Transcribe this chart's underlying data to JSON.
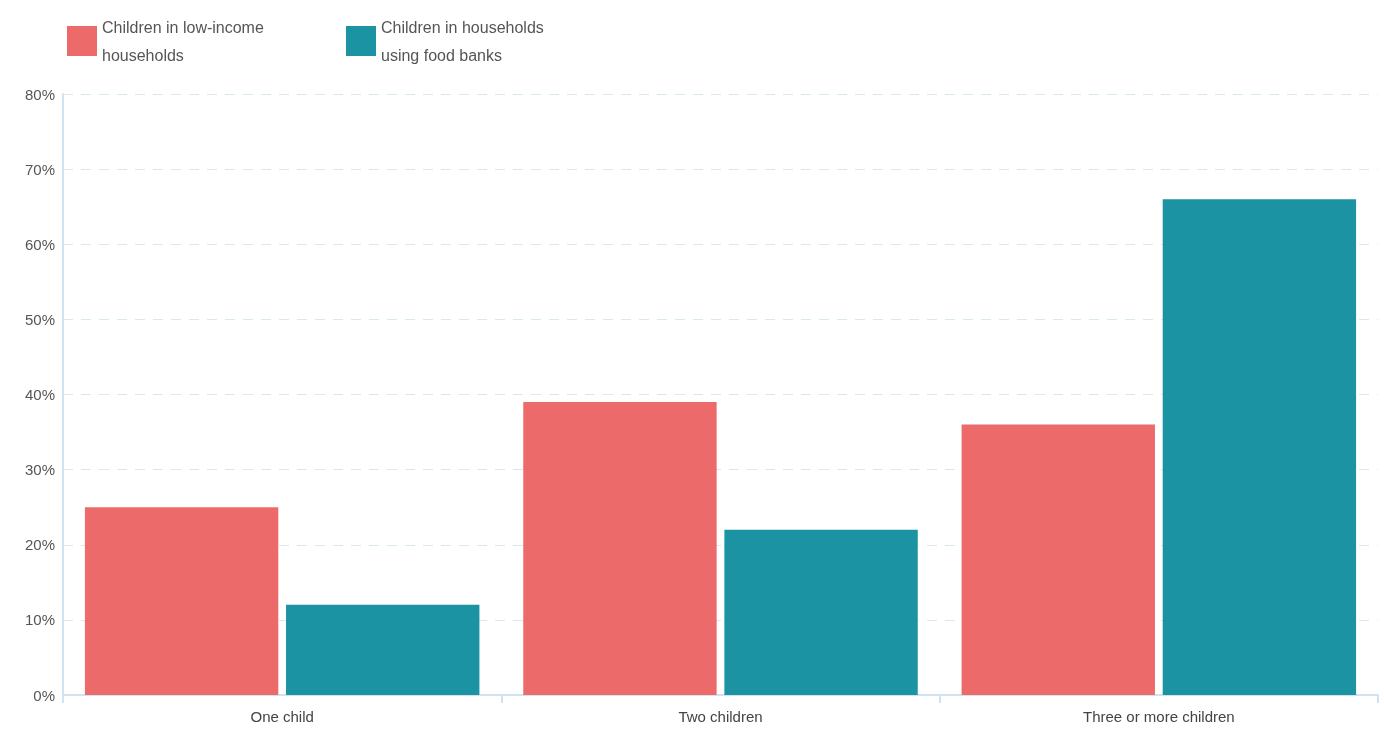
{
  "chart_data": {
    "type": "bar",
    "categories": [
      "One child",
      "Two children",
      "Three or more children"
    ],
    "series": [
      {
        "name": "Children in low-income households",
        "color": "#ec6b6a",
        "values": [
          25,
          39,
          36
        ]
      },
      {
        "name": "Children in households using food banks",
        "color": "#1b93a3",
        "values": [
          12,
          22,
          66
        ]
      }
    ],
    "ylim": [
      0,
      80
    ],
    "yticks": [
      {
        "value": 0,
        "label": "0%"
      },
      {
        "value": 10,
        "label": "10%"
      },
      {
        "value": 20,
        "label": "20%"
      },
      {
        "value": 30,
        "label": "30%"
      },
      {
        "value": 40,
        "label": "40%"
      },
      {
        "value": 50,
        "label": "50%"
      },
      {
        "value": 60,
        "label": "60%"
      },
      {
        "value": 70,
        "label": "70%"
      },
      {
        "value": 80,
        "label": "80%"
      }
    ],
    "grid": "y",
    "legend": "top left"
  }
}
